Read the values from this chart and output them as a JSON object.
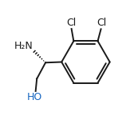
{
  "background_color": "#ffffff",
  "line_color": "#1a1a1a",
  "bond_width": 1.4,
  "font_size": 9,
  "figsize": [
    1.73,
    1.55
  ],
  "dpi": 100,
  "cl1_label": "Cl",
  "cl2_label": "Cl",
  "nh2_label": "H₂N",
  "oh_label": "HO"
}
